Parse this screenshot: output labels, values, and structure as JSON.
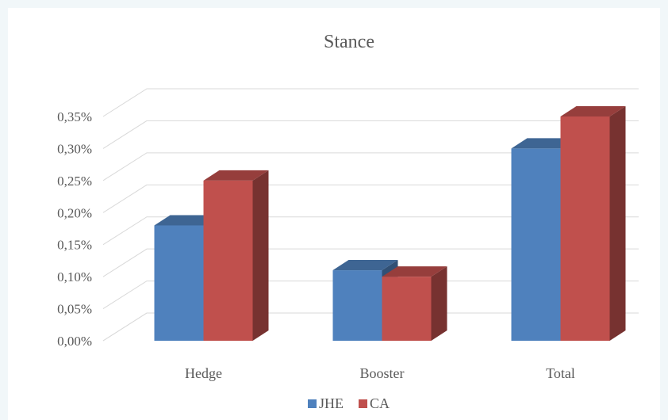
{
  "chart_data": {
    "type": "bar",
    "title": "Stance",
    "categories": [
      "Hedge",
      "Booster",
      "Total"
    ],
    "series": [
      {
        "name": "JHE",
        "values": [
          0.18,
          0.11,
          0.3
        ],
        "color": "#4f81bd"
      },
      {
        "name": "CA",
        "values": [
          0.25,
          0.1,
          0.35
        ],
        "color": "#c0504d"
      }
    ],
    "ylim": [
      0,
      0.35
    ],
    "yticks": [
      "0,00%",
      "0,05%",
      "0,10%",
      "0,15%",
      "0,20%",
      "0,25%",
      "0,30%",
      "0,35%"
    ],
    "grid": true,
    "legend_position": "bottom",
    "style": "3d-clustered-column"
  }
}
